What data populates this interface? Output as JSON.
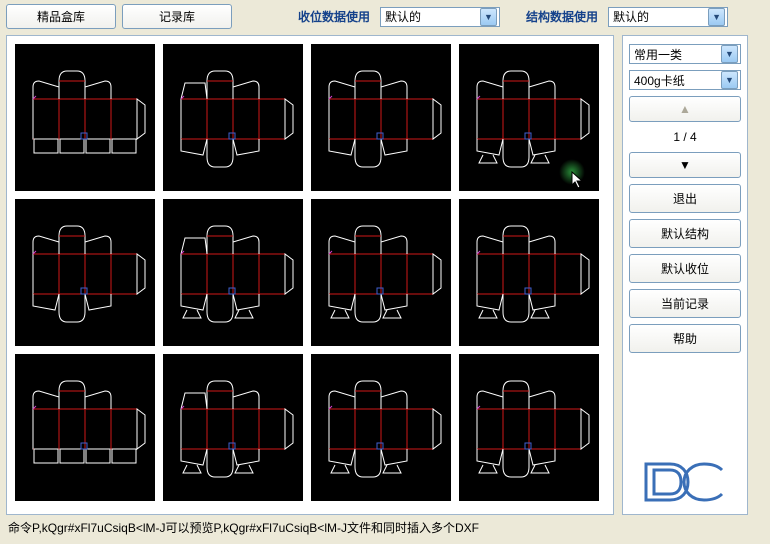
{
  "top": {
    "btn1": "精品盒库",
    "btn2": "记录库",
    "label1": "收位数据使用",
    "select1": "默认的",
    "label2": "结构数据使用",
    "select2": "默认的"
  },
  "side": {
    "select_category": "常用一类",
    "select_material": "400g卡纸",
    "up": "▲",
    "page": "1 / 4",
    "down": "▼",
    "exit": "退出",
    "default_struct": "默认结构",
    "default_pos": "默认收位",
    "current_rec": "当前记录",
    "help": "帮助"
  },
  "status": "命令P,kQgr#xFl7uCsiqB<lM-J可以预览P,kQgr#xFl7uCsiqB<lM-J文件和同时插入多个DXF",
  "thumbnails": [
    {
      "type": "box",
      "tabTop": true,
      "tabBottom": false,
      "flapStyle": "round",
      "feet": false
    },
    {
      "type": "box",
      "tabTop": true,
      "tabBottom": true,
      "flapStyle": "trap",
      "feet": false
    },
    {
      "type": "box",
      "tabTop": true,
      "tabBottom": true,
      "flapStyle": "round",
      "feet": false
    },
    {
      "type": "box",
      "tabTop": true,
      "tabBottom": true,
      "flapStyle": "round",
      "feet": true
    },
    {
      "type": "box",
      "tabTop": true,
      "tabBottom": true,
      "flapStyle": "round",
      "feet": false
    },
    {
      "type": "box",
      "tabTop": true,
      "tabBottom": true,
      "flapStyle": "trap",
      "feet": true
    },
    {
      "type": "box",
      "tabTop": true,
      "tabBottom": true,
      "flapStyle": "round",
      "feet": true
    },
    {
      "type": "box",
      "tabTop": true,
      "tabBottom": true,
      "flapStyle": "round",
      "feet": true
    },
    {
      "type": "box",
      "tabTop": true,
      "tabBottom": false,
      "flapStyle": "round",
      "feet": false
    },
    {
      "type": "box",
      "tabTop": true,
      "tabBottom": true,
      "flapStyle": "trap",
      "feet": true
    },
    {
      "type": "box",
      "tabTop": true,
      "tabBottom": true,
      "flapStyle": "round",
      "feet": true
    },
    {
      "type": "box",
      "tabTop": true,
      "tabBottom": true,
      "flapStyle": "round",
      "feet": true
    }
  ],
  "colors": {
    "redLine": "#d01818",
    "whiteLine": "#ffffff",
    "magenta": "#d040d0",
    "blue": "#4060d0"
  }
}
